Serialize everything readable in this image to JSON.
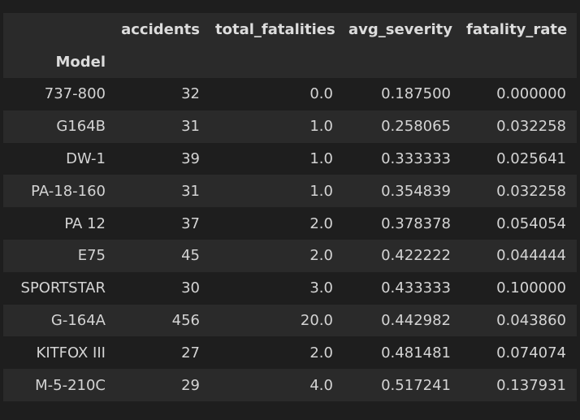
{
  "table": {
    "index_name": "Model",
    "columns": [
      "accidents",
      "total_fatalities",
      "avg_severity",
      "fatality_rate"
    ],
    "rows": [
      {
        "model": "737-800",
        "accidents": "32",
        "total_fatalities": "0.0",
        "avg_severity": "0.187500",
        "fatality_rate": "0.000000"
      },
      {
        "model": "G164B",
        "accidents": "31",
        "total_fatalities": "1.0",
        "avg_severity": "0.258065",
        "fatality_rate": "0.032258"
      },
      {
        "model": "DW-1",
        "accidents": "39",
        "total_fatalities": "1.0",
        "avg_severity": "0.333333",
        "fatality_rate": "0.025641"
      },
      {
        "model": "PA-18-160",
        "accidents": "31",
        "total_fatalities": "1.0",
        "avg_severity": "0.354839",
        "fatality_rate": "0.032258"
      },
      {
        "model": "PA 12",
        "accidents": "37",
        "total_fatalities": "2.0",
        "avg_severity": "0.378378",
        "fatality_rate": "0.054054"
      },
      {
        "model": "E75",
        "accidents": "45",
        "total_fatalities": "2.0",
        "avg_severity": "0.422222",
        "fatality_rate": "0.044444"
      },
      {
        "model": "SPORTSTAR",
        "accidents": "30",
        "total_fatalities": "3.0",
        "avg_severity": "0.433333",
        "fatality_rate": "0.100000"
      },
      {
        "model": "G-164A",
        "accidents": "456",
        "total_fatalities": "20.0",
        "avg_severity": "0.442982",
        "fatality_rate": "0.043860"
      },
      {
        "model": "KITFOX III",
        "accidents": "27",
        "total_fatalities": "2.0",
        "avg_severity": "0.481481",
        "fatality_rate": "0.074074"
      },
      {
        "model": "M-5-210C",
        "accidents": "29",
        "total_fatalities": "4.0",
        "avg_severity": "0.517241",
        "fatality_rate": "0.137931"
      }
    ]
  },
  "colors": {
    "background": "#1e1e1e",
    "stripe": "#2a2a2a",
    "text": "#d4d4d4"
  }
}
